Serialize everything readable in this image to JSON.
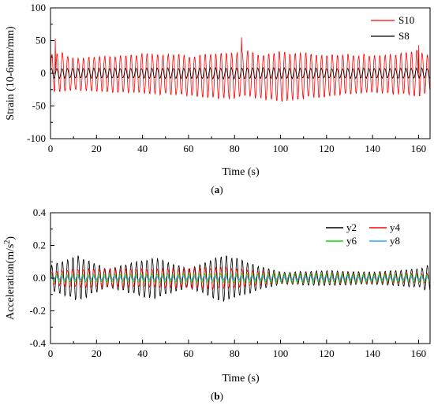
{
  "chart_data": [
    {
      "type": "line",
      "caption": "a",
      "xlabel": "Time (s)",
      "ylabel": "Strain (10-6mm/mm)",
      "xlim": [
        0,
        165
      ],
      "ylim": [
        -100,
        100
      ],
      "xticks": [
        0,
        20,
        40,
        60,
        80,
        100,
        120,
        140,
        160
      ],
      "yticks": [
        -100,
        -50,
        0,
        50,
        100
      ],
      "legend_position": "top-right",
      "grid": false,
      "series": [
        {
          "name": "S10",
          "color": "#ff0000",
          "description": "oscillating strain signal, period ~2.3 s",
          "envelope_time": [
            0,
            5,
            10,
            20,
            30,
            40,
            50,
            60,
            70,
            80,
            85,
            90,
            100,
            110,
            120,
            130,
            140,
            150,
            160,
            165
          ],
          "envelope_max": [
            30,
            35,
            25,
            28,
            30,
            33,
            32,
            30,
            32,
            34,
            38,
            32,
            36,
            35,
            30,
            32,
            30,
            32,
            38,
            30
          ],
          "envelope_min": [
            -30,
            -30,
            -28,
            -30,
            -32,
            -34,
            -35,
            -38,
            -40,
            -42,
            -40,
            -42,
            -46,
            -42,
            -38,
            -35,
            -32,
            -34,
            -38,
            -30
          ],
          "peak_points": [
            [
              2,
              53
            ],
            [
              83,
              55
            ],
            [
              160,
              43
            ]
          ]
        },
        {
          "name": "S8",
          "color": "#000000",
          "description": "oscillating strain signal, period ~2.3 s",
          "envelope_time": [
            0,
            40,
            80,
            120,
            165
          ],
          "envelope_max": [
            8,
            8,
            9,
            8,
            8
          ],
          "envelope_min": [
            -8,
            -8,
            -9,
            -8,
            -8
          ]
        }
      ]
    },
    {
      "type": "line",
      "caption": "b",
      "xlabel": "Time (s)",
      "ylabel_prefix": "Acceleration(m/s",
      "ylabel_sup": "2",
      "ylabel_suffix": ")",
      "xlim": [
        0,
        165
      ],
      "ylim": [
        -0.4,
        0.4
      ],
      "xticks": [
        0,
        20,
        40,
        60,
        80,
        100,
        120,
        140,
        160
      ],
      "xtick_labels": [
        "0",
        "20",
        "40",
        "60",
        "80",
        "100",
        "120",
        "140",
        "160"
      ],
      "yticks": [
        -0.4,
        -0.2,
        0.0,
        0.2,
        0.4
      ],
      "ytick_labels": [
        "-0.4",
        "-0.2",
        "0.0",
        "0.2",
        "0.4"
      ],
      "legend_position": "top-right",
      "grid": false,
      "series": [
        {
          "name": "y2",
          "color": "#000000",
          "description": "oscillating acceleration signal, period ~2.3 s",
          "envelope_time": [
            0,
            12,
            25,
            45,
            60,
            75,
            90,
            100,
            120,
            140,
            160,
            165
          ],
          "envelope_amp": [
            0.08,
            0.15,
            0.06,
            0.14,
            0.06,
            0.16,
            0.08,
            0.04,
            0.05,
            0.04,
            0.06,
            0.09
          ]
        },
        {
          "name": "y4",
          "color": "#ff0000",
          "description": "oscillating acceleration signal, period ~2.3 s",
          "envelope_time": [
            0,
            12,
            45,
            75,
            100,
            165
          ],
          "envelope_amp": [
            0.04,
            0.06,
            0.06,
            0.07,
            0.03,
            0.03
          ]
        },
        {
          "name": "y6",
          "color": "#00dd00",
          "description": "oscillating acceleration signal, period ~2.3 s",
          "envelope_time": [
            0,
            80,
            165
          ],
          "envelope_amp": [
            0.025,
            0.03,
            0.025
          ]
        },
        {
          "name": "y8",
          "color": "#22aaff",
          "description": "oscillating acceleration signal, period ~2.3 s",
          "envelope_time": [
            0,
            80,
            165
          ],
          "envelope_amp": [
            0.012,
            0.015,
            0.012
          ]
        }
      ]
    }
  ]
}
